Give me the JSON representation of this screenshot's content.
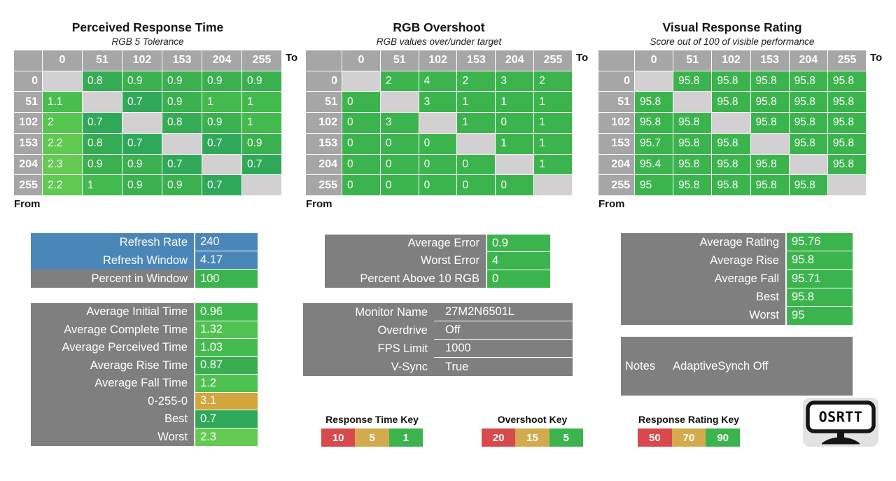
{
  "colors": {
    "green": "#3cb44e",
    "gold": "#d3aa4e",
    "red": "#d7494d",
    "blue": "#4a86b8",
    "panel_gray": "#7f7f7f",
    "header_gray": "#a6a6a6",
    "diagonal_gray": "#d2d0d0"
  },
  "chart_data": [
    {
      "type": "heatmap",
      "title": "Perceived Response Time",
      "subtitle": "RGB 5 Tolerance",
      "axis_to_label": "To",
      "axis_from_label": "From",
      "levels": [
        "0",
        "51",
        "102",
        "153",
        "204",
        "255"
      ],
      "rows": [
        [
          null,
          0.8,
          0.9,
          0.9,
          0.9,
          0.9
        ],
        [
          1.1,
          null,
          0.7,
          0.9,
          1,
          1
        ],
        [
          2,
          0.7,
          null,
          0.8,
          0.9,
          1
        ],
        [
          2.2,
          0.8,
          0.7,
          null,
          0.7,
          0.9
        ],
        [
          2.3,
          0.9,
          0.9,
          0.7,
          null,
          0.7
        ],
        [
          2.2,
          1,
          0.9,
          0.9,
          0.7,
          null
        ]
      ],
      "color_scale": [
        [
          0.7,
          "#2fa85a"
        ],
        [
          0.8,
          "#35ac53"
        ],
        [
          0.9,
          "#3ab04f"
        ],
        [
          1,
          "#42ba4d"
        ],
        [
          1.2,
          "#4ec14e"
        ],
        [
          2,
          "#57c650"
        ],
        [
          2.3,
          "#64ca52"
        ],
        [
          3.1,
          "#d2a53e"
        ],
        [
          5,
          "#d3aa4e"
        ],
        [
          10,
          "#d7494d"
        ]
      ]
    },
    {
      "type": "heatmap",
      "title": "RGB Overshoot",
      "subtitle": "RGB values over/under target",
      "axis_to_label": "To",
      "axis_from_label": "From",
      "levels": [
        "0",
        "51",
        "102",
        "153",
        "204",
        "255"
      ],
      "rows": [
        [
          null,
          2,
          4,
          2,
          3,
          2
        ],
        [
          0,
          null,
          3,
          1,
          1,
          1
        ],
        [
          0,
          3,
          null,
          1,
          0,
          1
        ],
        [
          0,
          0,
          0,
          null,
          1,
          1
        ],
        [
          0,
          0,
          0,
          0,
          null,
          1
        ],
        [
          0,
          0,
          0,
          0,
          0,
          null
        ]
      ],
      "color_scale": [
        [
          0,
          "#3cb44e"
        ],
        [
          5,
          "#3cb44e"
        ],
        [
          15,
          "#d3aa4e"
        ],
        [
          20,
          "#d7494d"
        ]
      ]
    },
    {
      "type": "heatmap",
      "title": "Visual Response Rating",
      "subtitle": "Score out of 100 of visible performance",
      "axis_to_label": "To",
      "axis_from_label": "From",
      "levels": [
        "0",
        "51",
        "102",
        "153",
        "204",
        "255"
      ],
      "rows": [
        [
          null,
          95.8,
          95.8,
          95.8,
          95.8,
          95.8
        ],
        [
          95.8,
          null,
          95.8,
          95.8,
          95.8,
          95.8
        ],
        [
          95.8,
          95.8,
          null,
          95.8,
          95.8,
          95.8
        ],
        [
          95.7,
          95.8,
          95.8,
          null,
          95.8,
          95.8
        ],
        [
          95.4,
          95.8,
          95.8,
          95.8,
          null,
          95.8
        ],
        [
          95,
          95.8,
          95.8,
          95.8,
          95.8,
          null
        ]
      ],
      "color_scale": [
        [
          50,
          "#d7494d"
        ],
        [
          70,
          "#d3aa4e"
        ],
        [
          90,
          "#3cb44e"
        ],
        [
          100,
          "#3cb44e"
        ]
      ]
    }
  ],
  "panels": {
    "refresh": {
      "rows": [
        {
          "label": "Refresh Rate",
          "value": "240",
          "label_bg": "#4a86b8",
          "value_bg": "#4a86b8"
        },
        {
          "label": "Refresh Window",
          "value": "4.17",
          "label_bg": "#4a86b8",
          "value_bg": "#4a86b8"
        },
        {
          "label": "Percent in Window",
          "value": "100",
          "label_bg": "#7f7f7f",
          "value_bg": "#3cb44e"
        }
      ]
    },
    "times": {
      "rows": [
        {
          "label": "Average Initial Time",
          "value": "0.96",
          "label_bg": "#7f7f7f",
          "value_bg": "#3fb64e"
        },
        {
          "label": "Average Complete Time",
          "value": "1.32",
          "label_bg": "#7f7f7f",
          "value_bg": "#50c24f"
        },
        {
          "label": "Average Perceived Time",
          "value": "1.03",
          "label_bg": "#7f7f7f",
          "value_bg": "#44bc4d"
        },
        {
          "label": "Average Rise Time",
          "value": "0.87",
          "label_bg": "#7f7f7f",
          "value_bg": "#39ae51"
        },
        {
          "label": "Average Fall Time",
          "value": "1.2",
          "label_bg": "#7f7f7f",
          "value_bg": "#4ec14e"
        },
        {
          "label": "0-255-0",
          "value": "3.1",
          "label_bg": "#7f7f7f",
          "value_bg": "#d2a53e"
        },
        {
          "label": "Best",
          "value": "0.7",
          "label_bg": "#7f7f7f",
          "value_bg": "#2fa85a"
        },
        {
          "label": "Worst",
          "value": "2.3",
          "label_bg": "#7f7f7f",
          "value_bg": "#64ca52"
        }
      ]
    },
    "error": {
      "rows": [
        {
          "label": "Average Error",
          "value": "0.9",
          "label_bg": "#7f7f7f",
          "value_bg": "#3cb44e"
        },
        {
          "label": "Worst Error",
          "value": "4",
          "label_bg": "#7f7f7f",
          "value_bg": "#3cb44e"
        },
        {
          "label": "Percent Above 10 RGB",
          "value": "0",
          "label_bg": "#7f7f7f",
          "value_bg": "#3cb44e"
        }
      ]
    },
    "monitor": {
      "rows": [
        {
          "label": "Monitor Name",
          "value": "27M2N6501L",
          "label_bg": "#7f7f7f",
          "value_bg": "#7f7f7f"
        },
        {
          "label": "Overdrive",
          "value": "Off",
          "label_bg": "#7f7f7f",
          "value_bg": "#7f7f7f"
        },
        {
          "label": "FPS Limit",
          "value": "1000",
          "label_bg": "#7f7f7f",
          "value_bg": "#7f7f7f"
        },
        {
          "label": "V-Sync",
          "value": "True",
          "label_bg": "#7f7f7f",
          "value_bg": "#7f7f7f"
        }
      ]
    },
    "rating": {
      "rows": [
        {
          "label": "Average Rating",
          "value": "95.76",
          "label_bg": "#7f7f7f",
          "value_bg": "#3cb44e"
        },
        {
          "label": "Average Rise",
          "value": "95.8",
          "label_bg": "#7f7f7f",
          "value_bg": "#3cb44e"
        },
        {
          "label": "Average Fall",
          "value": "95.71",
          "label_bg": "#7f7f7f",
          "value_bg": "#3cb44e"
        },
        {
          "label": "Best",
          "value": "95.8",
          "label_bg": "#7f7f7f",
          "value_bg": "#3cb44e"
        },
        {
          "label": "Worst",
          "value": "95",
          "label_bg": "#7f7f7f",
          "value_bg": "#3cb44e"
        }
      ]
    },
    "notes": {
      "label": "Notes",
      "value": "AdaptiveSynch Off"
    }
  },
  "keys": [
    {
      "id": "response-time-key",
      "title": "Response Time Key",
      "segments": [
        {
          "label": "10",
          "color": "#d7494d"
        },
        {
          "label": "5",
          "color": "#d3aa4e"
        },
        {
          "label": "1",
          "color": "#3cb44e"
        }
      ]
    },
    {
      "id": "overshoot-key",
      "title": "Overshoot Key",
      "segments": [
        {
          "label": "20",
          "color": "#d7494d"
        },
        {
          "label": "15",
          "color": "#d3aa4e"
        },
        {
          "label": "5",
          "color": "#3cb44e"
        }
      ]
    },
    {
      "id": "response-rating-key",
      "title": "Response Rating Key",
      "segments": [
        {
          "label": "50",
          "color": "#d7494d"
        },
        {
          "label": "70",
          "color": "#d3aa4e"
        },
        {
          "label": "90",
          "color": "#3cb44e"
        }
      ]
    }
  ],
  "logo": {
    "text": "OSRTT"
  }
}
